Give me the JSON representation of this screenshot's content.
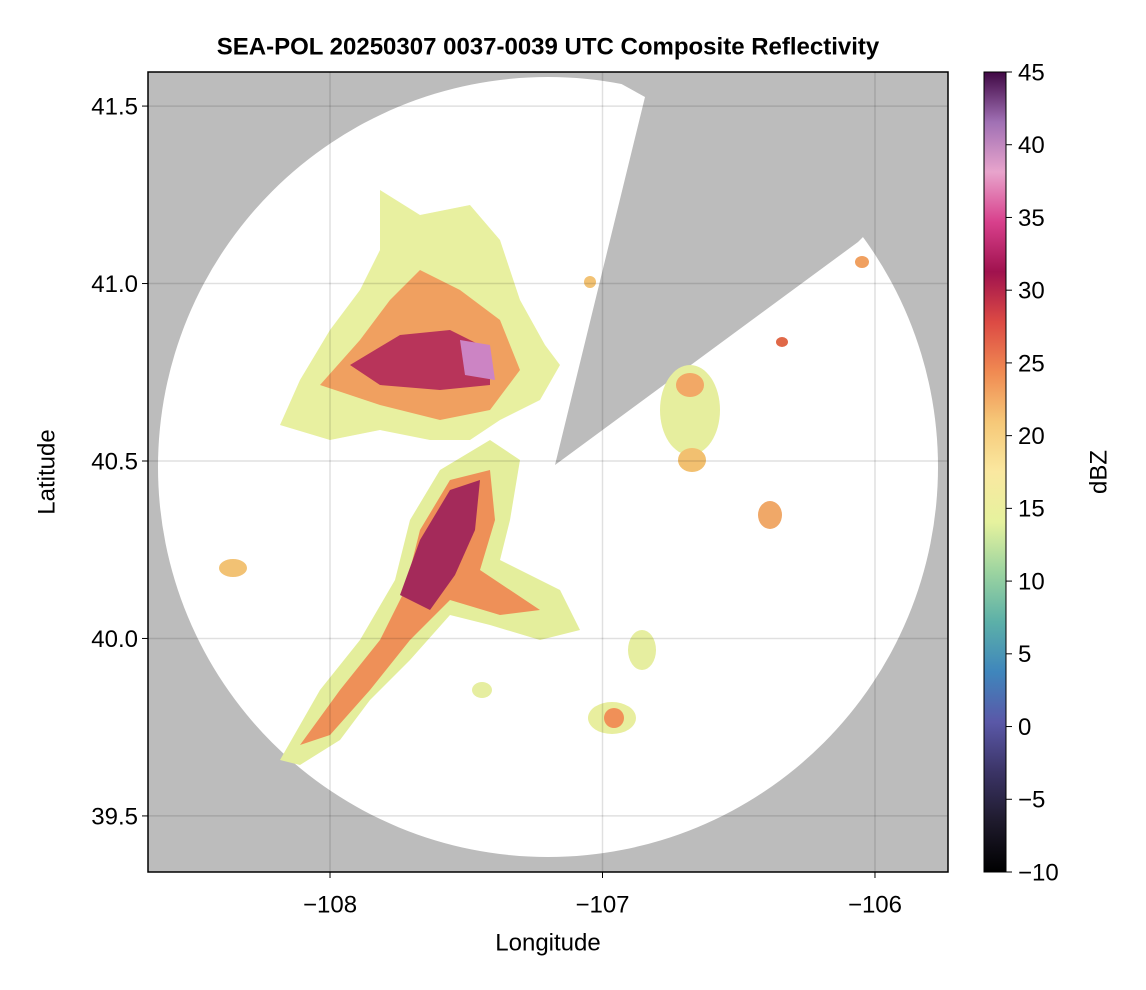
{
  "chart_data": {
    "type": "radar-map",
    "title": "SEA-POL 20250307 0037-0039 UTC Composite Reflectivity",
    "x_label": "Longitude",
    "y_label": "Latitude",
    "xlim": [
      -108.668,
      -105.732
    ],
    "ylim": [
      39.342,
      41.596
    ],
    "xticks": [
      {
        "value": -108,
        "label": "−108"
      },
      {
        "value": -107,
        "label": "−107"
      },
      {
        "value": -106,
        "label": "−106"
      }
    ],
    "yticks": [
      39.5,
      {
        "value": 40.0,
        "label": "40.0"
      },
      40.5,
      {
        "value": 41.0,
        "label": "41.0"
      },
      41.5
    ],
    "grid": true,
    "colorbar": {
      "label": "dBZ",
      "lim": [
        -10,
        45
      ],
      "ticks": [
        {
          "value": -10,
          "label": "−10"
        },
        {
          "value": -5,
          "label": "−5"
        },
        0,
        5,
        10,
        15,
        20,
        25,
        30,
        35,
        40,
        45
      ],
      "colors": [
        "#000000",
        "#1e1a2c",
        "#3b3466",
        "#5a58a8",
        "#3f86bc",
        "#5cb0a8",
        "#9cd4a0",
        "#e6f29e",
        "#fae8a0",
        "#f6c878",
        "#f08a52",
        "#dc4a44",
        "#a0124e",
        "#d8408c",
        "#e8a4cc",
        "#a070b4",
        "#400844"
      ]
    }
  }
}
